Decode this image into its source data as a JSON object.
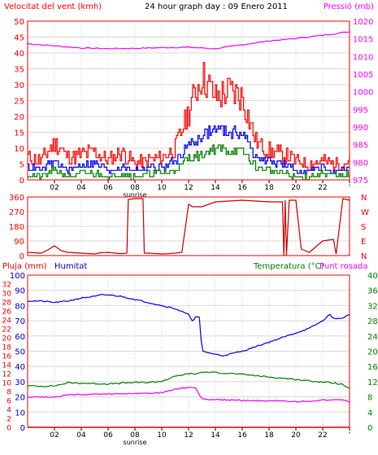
{
  "chart_data": [
    {
      "type": "line",
      "title": "24 hour graph day : 09 Enero 2011",
      "ylabel_left": "Velocitat del vent (kmh)",
      "ylabel_right": "Pressió (mb)",
      "x_ticks": [
        "02",
        "04",
        "06",
        "08",
        "10",
        "12",
        "14",
        "16",
        "18",
        "20",
        "22",
        "'"
      ],
      "x_marker_label": "sunrise",
      "ylim_left": [
        0,
        50
      ],
      "yticks_left": [
        "0",
        "5",
        "10",
        "15",
        "20",
        "25",
        "30",
        "35",
        "40",
        "45",
        "50"
      ],
      "ylim_right": [
        975,
        1020
      ],
      "yticks_right": [
        "975",
        "980",
        "985",
        "990",
        "995",
        "1000",
        "1005",
        "1010",
        "1015",
        "1020"
      ],
      "colors": {
        "gust": "#ff0000",
        "average": "#0000ff",
        "minimum": "#008000",
        "pressure": "#ff00ff",
        "axes": "#ff0000"
      },
      "series": [
        {
          "key": "gust",
          "axis": "left",
          "hours": [
            0,
            1,
            2,
            3,
            4,
            5,
            6,
            7,
            8,
            9,
            10,
            11,
            12,
            13,
            14,
            15,
            16,
            17,
            18,
            19,
            20,
            21,
            22,
            23,
            24
          ],
          "values": [
            7,
            6,
            12,
            7,
            8,
            9,
            6,
            9,
            5,
            6,
            7,
            10,
            22,
            33,
            26,
            28,
            26,
            12,
            9,
            8,
            6,
            5,
            6,
            5,
            6
          ]
        },
        {
          "key": "average",
          "axis": "left",
          "hours": [
            0,
            1,
            2,
            3,
            4,
            5,
            6,
            7,
            8,
            9,
            10,
            11,
            12,
            13,
            14,
            15,
            16,
            17,
            18,
            19,
            20,
            21,
            22,
            23,
            24
          ],
          "values": [
            4,
            3,
            6,
            3,
            5,
            5,
            3,
            4,
            3,
            4,
            4,
            6,
            11,
            14,
            16,
            15,
            15,
            7,
            6,
            5,
            3,
            3,
            4,
            2,
            4
          ]
        },
        {
          "key": "minimum",
          "axis": "left",
          "hours": [
            0,
            1,
            2,
            3,
            4,
            5,
            6,
            7,
            8,
            9,
            10,
            11,
            12,
            13,
            14,
            15,
            16,
            17,
            18,
            19,
            20,
            21,
            22,
            23,
            24
          ],
          "values": [
            2,
            1,
            3,
            1,
            2,
            2,
            1,
            2,
            1,
            2,
            2,
            3,
            7,
            8,
            10,
            9,
            9,
            4,
            3,
            2,
            1,
            1,
            2,
            1,
            2
          ]
        },
        {
          "key": "pressure",
          "axis": "right",
          "hours": [
            0,
            2,
            4,
            6,
            8,
            10,
            12,
            14,
            16,
            18,
            20,
            22,
            24
          ],
          "values": [
            1013.6,
            1013,
            1012.4,
            1012.2,
            1012.3,
            1012.5,
            1012.6,
            1012.2,
            1013.3,
            1014.4,
            1015.1,
            1016,
            1017
          ]
        }
      ]
    },
    {
      "type": "line",
      "ylim": [
        0,
        360
      ],
      "yticks": [
        "0",
        "90",
        "180",
        "270",
        "360"
      ],
      "yticks_right": [
        "N",
        "E",
        "S",
        "W",
        "N"
      ],
      "x_ticks": [],
      "colors": {
        "direction": "#cc0000",
        "axes": "#ff0000"
      },
      "series": [
        {
          "key": "direction",
          "hours": [
            0,
            1,
            1.5,
            2,
            2.5,
            3,
            4,
            5,
            5.5,
            6,
            6.5,
            7,
            7.4,
            7.5,
            8,
            8.6,
            8.7,
            9,
            10,
            10.5,
            11,
            11.5,
            12,
            12.3,
            13,
            14,
            15,
            16,
            17,
            18,
            19,
            19.1,
            19.2,
            19.3,
            19.5,
            20,
            20.4,
            21,
            22,
            22.8,
            23,
            23.5,
            24
          ],
          "values": [
            20,
            15,
            35,
            60,
            30,
            20,
            15,
            10,
            18,
            20,
            15,
            12,
            15,
            345,
            350,
            350,
            15,
            15,
            10,
            12,
            15,
            20,
            315,
            300,
            300,
            330,
            335,
            340,
            335,
            330,
            330,
            0,
            340,
            0,
            340,
            340,
            40,
            20,
            90,
            100,
            10,
            350,
            340
          ]
        }
      ]
    },
    {
      "type": "line",
      "ylabel_left": "Pluja (mm)",
      "ylabel_left2": "Humitat",
      "ylabel_right": "Temperatura (°C)",
      "ylabel_right2": "Punt rosada",
      "x_ticks": [
        "02",
        "04",
        "06",
        "08",
        "10",
        "12",
        "14",
        "16",
        "18",
        "20",
        "22",
        "'"
      ],
      "x_marker_label": "sunrise",
      "ylim_left": [
        0,
        100
      ],
      "yticks_left": [
        "0",
        "10",
        "20",
        "30",
        "40",
        "50",
        "60",
        "70",
        "80",
        "90",
        "100"
      ],
      "yticks_left_inner": [
        "0",
        "2",
        "4",
        "6",
        "8",
        "10",
        "12",
        "14",
        "16",
        "18",
        "20",
        "22",
        "24",
        "26",
        "28",
        "30",
        "32",
        "34"
      ],
      "ylim_right": [
        0,
        40
      ],
      "yticks_right": [
        "0",
        "4",
        "8",
        "12",
        "16",
        "20",
        "24",
        "28",
        "32",
        "36",
        "40"
      ],
      "colors": {
        "humidity": "#0000ff",
        "temperature": "#008000",
        "dewpoint": "#ff00ff",
        "rain": "#ff0000",
        "axes": "#ff0000"
      },
      "series": [
        {
          "key": "humidity",
          "axis": "left",
          "hours": [
            0,
            1,
            2,
            3,
            4,
            5,
            5.5,
            6,
            7,
            8,
            9,
            10,
            11,
            12,
            12.3,
            12.6,
            12.8,
            13,
            14,
            14.5,
            15,
            16,
            17,
            18,
            19,
            20,
            21,
            22,
            22.5,
            23,
            23.5,
            24
          ],
          "values": [
            83,
            83,
            82,
            83,
            85,
            86,
            87,
            87,
            86,
            84,
            82,
            80,
            78,
            74,
            70,
            73,
            72,
            50,
            48,
            47,
            48,
            50,
            53,
            56,
            59,
            62,
            65,
            70,
            74,
            71,
            72,
            74
          ]
        },
        {
          "key": "temperature",
          "axis": "right",
          "hours": [
            0,
            1,
            2,
            3,
            4,
            5,
            6,
            7,
            8,
            9,
            10,
            11,
            12,
            12.5,
            13,
            14,
            15,
            16,
            17,
            18,
            19,
            20,
            21,
            22,
            23,
            23.5,
            24
          ],
          "values": [
            10.9,
            10.8,
            10.9,
            11.7,
            11.6,
            11.5,
            11.4,
            11.6,
            11.8,
            11.8,
            12.1,
            13.4,
            14.1,
            14,
            14.5,
            14.4,
            14.2,
            13.9,
            13.6,
            13.2,
            12.9,
            12.6,
            12.2,
            11.9,
            11.6,
            11.2,
            10.1
          ]
        },
        {
          "key": "dewpoint",
          "axis": "right",
          "hours": [
            0,
            1,
            2,
            3,
            4,
            5,
            6,
            7,
            8,
            9,
            10,
            11,
            12,
            12.5,
            13,
            14,
            15,
            16,
            17,
            18,
            19,
            20,
            21,
            22,
            23,
            23.5,
            24
          ],
          "values": [
            8,
            8,
            8,
            8.5,
            8.6,
            8.7,
            8.7,
            8.8,
            8.9,
            8.9,
            9.1,
            10,
            10.5,
            10.4,
            7.5,
            7.3,
            7.2,
            7.1,
            7,
            7,
            6.8,
            6.7,
            6.9,
            7.1,
            7.4,
            7.2,
            6.8
          ]
        },
        {
          "key": "rain",
          "axis": "left",
          "hours": [
            0,
            24
          ],
          "values": [
            0,
            0
          ]
        }
      ]
    }
  ]
}
